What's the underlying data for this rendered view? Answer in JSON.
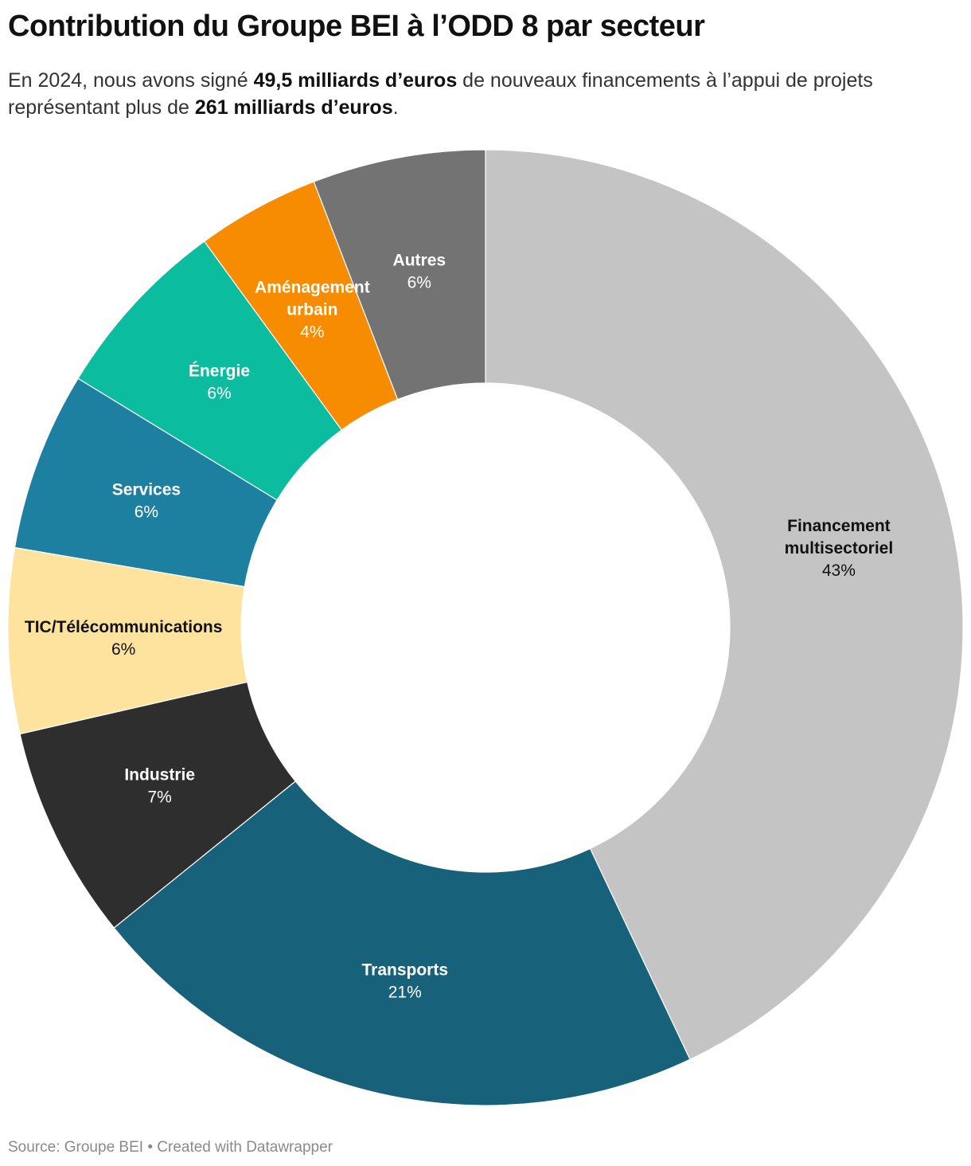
{
  "title": "Contribution du Groupe BEI à l’ODD 8 par secteur",
  "subtitle": {
    "part1": "En 2024, nous avons signé ",
    "bold1": "49,5 milliards d’euros",
    "part2": " de nouveaux financements à l’appui de projets représentant plus de ",
    "bold2": "261 milliards d’euros",
    "part3": "."
  },
  "footer": {
    "source": "Source: Groupe BEI",
    "separator": " • ",
    "created": "Created with Datawrapper"
  },
  "chart_data": {
    "type": "pie",
    "variant": "donut",
    "title": "Contribution du Groupe BEI à l’ODD 8 par secteur",
    "slices": [
      {
        "name": "Financement multisectoriel",
        "label_lines": [
          "Financement",
          "multisectoriel"
        ],
        "pct_label": "43%",
        "value": 43.3,
        "color": "#c4c4c4",
        "text_color": "#111111"
      },
      {
        "name": "Transports",
        "label_lines": [
          "Transports"
        ],
        "pct_label": "21%",
        "value": 21.4,
        "color": "#17617b",
        "text_color": "#ffffff"
      },
      {
        "name": "Industrie",
        "label_lines": [
          "Industrie"
        ],
        "pct_label": "7%",
        "value": 7.3,
        "color": "#2e2e2e",
        "text_color": "#ffffff"
      },
      {
        "name": "TIC/Télécommunications",
        "label_lines": [
          "TIC/Télécommunications"
        ],
        "pct_label": "6%",
        "value": 6.3,
        "color": "#fde39e",
        "text_color": "#111111"
      },
      {
        "name": "Services",
        "label_lines": [
          "Services"
        ],
        "pct_label": "6%",
        "value": 6.1,
        "color": "#1e80a0",
        "text_color": "#ffffff"
      },
      {
        "name": "Énergie",
        "label_lines": [
          "Énergie"
        ],
        "pct_label": "6%",
        "value": 6.3,
        "color": "#0bbd9e",
        "text_color": "#ffffff"
      },
      {
        "name": "Aménagement urbain",
        "label_lines": [
          "Aménagement",
          "urbain"
        ],
        "pct_label": "4%",
        "value": 4.2,
        "color": "#f78c00",
        "text_color": "#ffffff"
      },
      {
        "name": "Autres",
        "label_lines": [
          "Autres"
        ],
        "pct_label": "6%",
        "value": 5.9,
        "color": "#737373",
        "text_color": "#ffffff"
      }
    ]
  }
}
